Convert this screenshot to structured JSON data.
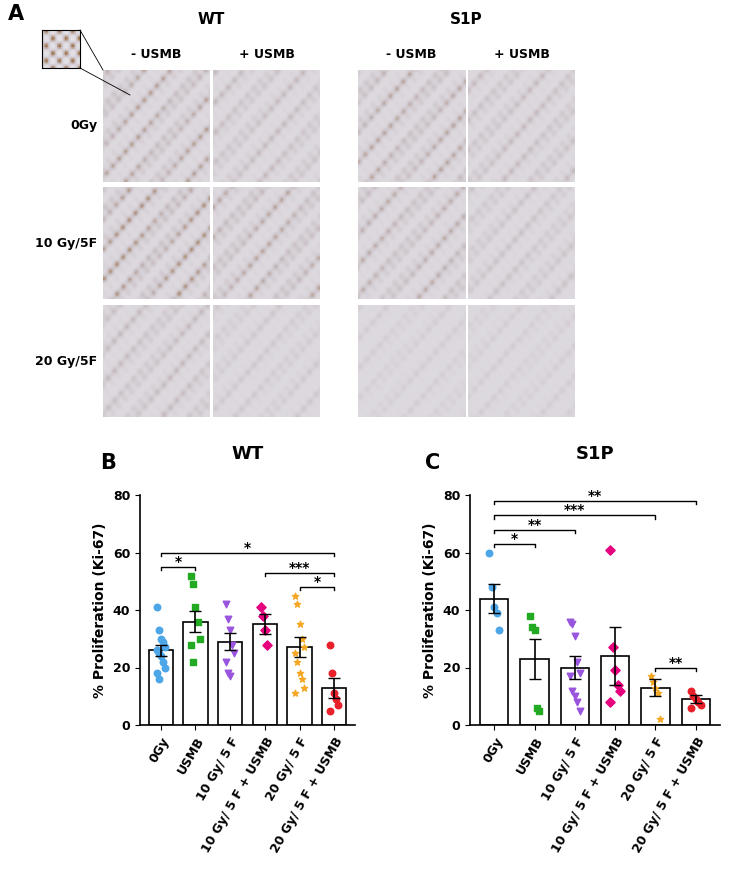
{
  "panel_a": {
    "label": "A",
    "groups": [
      {
        "name": "WT",
        "columns": [
          "- USMB",
          "+ USMB"
        ]
      },
      {
        "name": "S1P",
        "columns": [
          "- USMB",
          "+ USMB"
        ]
      }
    ],
    "rows": [
      "0Gy",
      "10 Gy/5F",
      "20 Gy/5F"
    ]
  },
  "chart_data": [
    {
      "type": "bar",
      "title": "WT",
      "annotations": [
        "B"
      ],
      "y_label": "% Proliferation (Ki-67)",
      "categories": [
        "0Gy",
        "USMB",
        "10 Gy/ 5 F",
        "10 Gy/ 5 F + USMB",
        "20 Gy/ 5 F",
        "20 Gy/ 5 F + USMB"
      ],
      "values": [
        26,
        36,
        29,
        35,
        27,
        13
      ],
      "errors": [
        2,
        3.5,
        3,
        3.5,
        3.5,
        3.5
      ],
      "color": "#ffffff",
      "points": [
        {
          "color": "#4da6e8",
          "marker": "circle",
          "values": [
            41,
            33,
            30,
            29,
            27,
            26,
            25,
            24,
            22,
            20,
            18,
            16
          ]
        },
        {
          "color": "#22aa22",
          "marker": "square",
          "values": [
            52,
            49,
            41,
            36,
            30,
            28,
            22
          ]
        },
        {
          "color": "#9955dd",
          "marker": "triangle_down",
          "values": [
            42,
            37,
            33,
            28,
            25,
            22,
            18,
            17
          ]
        },
        {
          "color": "#e6007e",
          "marker": "diamond",
          "values": [
            41,
            38,
            33,
            28
          ]
        },
        {
          "color": "#f5a623",
          "marker": "star",
          "values": [
            45,
            42,
            35,
            30,
            27,
            25,
            22,
            18,
            16,
            13,
            11
          ]
        },
        {
          "color": "#e8202a",
          "marker": "circle",
          "values": [
            28,
            18,
            11,
            9,
            7,
            5
          ]
        }
      ],
      "significance": [
        {
          "pair": [
            "0Gy",
            "USMB"
          ],
          "label": "*"
        },
        {
          "pair": [
            "0Gy",
            "20 Gy/ 5 F + USMB"
          ],
          "label": "*"
        },
        {
          "pair": [
            "10 Gy/ 5 F + USMB",
            "20 Gy/ 5 F + USMB"
          ],
          "label": "***"
        },
        {
          "pair": [
            "20 Gy/ 5 F",
            "20 Gy/ 5 F + USMB"
          ],
          "label": "*"
        }
      ],
      "ylim": [
        0,
        80
      ],
      "yticks": [
        0,
        20,
        40,
        60,
        80
      ],
      "grid": false
    },
    {
      "type": "bar",
      "title": "S1P",
      "annotations": [
        "C"
      ],
      "y_label": "% Proliferation (Ki-67)",
      "categories": [
        "0Gy",
        "USMB",
        "10 Gy/ 5 F",
        "10 Gy/ 5 F + USMB",
        "20 Gy/ 5 F",
        "20 Gy/ 5 F + USMB"
      ],
      "values": [
        44,
        23,
        20,
        24,
        13,
        9
      ],
      "errors": [
        5,
        7,
        4,
        10,
        3,
        1.5
      ],
      "color": "#ffffff",
      "points": [
        {
          "color": "#4da6e8",
          "marker": "circle",
          "values": [
            60,
            48,
            41,
            39,
            33
          ]
        },
        {
          "color": "#22aa22",
          "marker": "square",
          "values": [
            38,
            34,
            33,
            6,
            5
          ]
        },
        {
          "color": "#9955dd",
          "marker": "triangle_down",
          "values": [
            36,
            35,
            31,
            22,
            18,
            17,
            12,
            10,
            8,
            5
          ]
        },
        {
          "color": "#e6007e",
          "marker": "diamond",
          "values": [
            61,
            27,
            19,
            14,
            12,
            8
          ]
        },
        {
          "color": "#f5a623",
          "marker": "star",
          "values": [
            17,
            15,
            13,
            11,
            2
          ]
        },
        {
          "color": "#e8202a",
          "marker": "circle",
          "values": [
            12,
            10,
            9,
            8,
            7,
            6
          ]
        }
      ],
      "significance": [
        {
          "pair": [
            "0Gy",
            "USMB"
          ],
          "label": "*"
        },
        {
          "pair": [
            "0Gy",
            "10 Gy/ 5 F"
          ],
          "label": "**"
        },
        {
          "pair": [
            "0Gy",
            "20 Gy/ 5 F"
          ],
          "label": "***"
        },
        {
          "pair": [
            "0Gy",
            "20 Gy/ 5 F + USMB"
          ],
          "label": "**"
        },
        {
          "pair": [
            "20 Gy/ 5 F",
            "20 Gy/ 5 F + USMB"
          ],
          "label": "**"
        }
      ],
      "ylim": [
        0,
        80
      ],
      "yticks": [
        0,
        20,
        40,
        60,
        80
      ],
      "grid": false
    }
  ]
}
